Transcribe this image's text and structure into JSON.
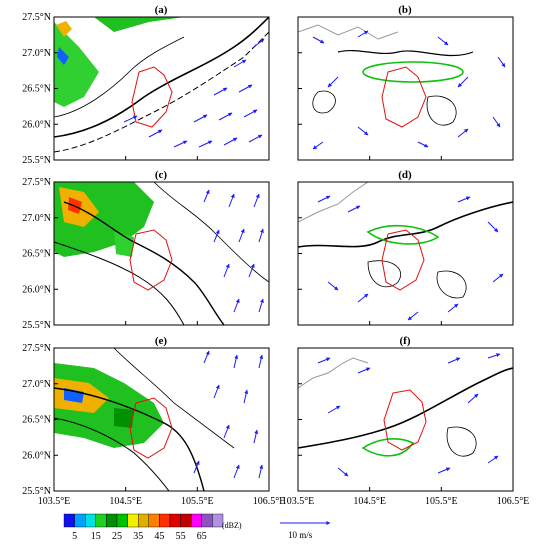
{
  "panels": [
    {
      "label": "(a)"
    },
    {
      "label": "(b)"
    },
    {
      "label": "(c)"
    },
    {
      "label": "(d)"
    },
    {
      "label": "(e)"
    },
    {
      "label": "(f)"
    }
  ],
  "y_ticks": [
    "27.5°N",
    "27.0°N",
    "26.5°N",
    "26.0°N",
    "25.5°N"
  ],
  "x_ticks": [
    "103.5°E",
    "104.5°E",
    "105.5°E",
    "106.5°E"
  ],
  "colorbar": {
    "colors": [
      "#1010f0",
      "#00a0ff",
      "#00e0e0",
      "#20d020",
      "#009000",
      "#00c000",
      "#f0f000",
      "#e0b000",
      "#ff8000",
      "#ff3000",
      "#e00000",
      "#c00000",
      "#ff00ff",
      "#9050c0",
      "#b090e0"
    ],
    "labels": [
      "5",
      "15",
      "25",
      "35",
      "45",
      "55",
      "65"
    ],
    "unit": "(dBZ)"
  },
  "wind_legend": {
    "label": "10 m/s"
  }
}
